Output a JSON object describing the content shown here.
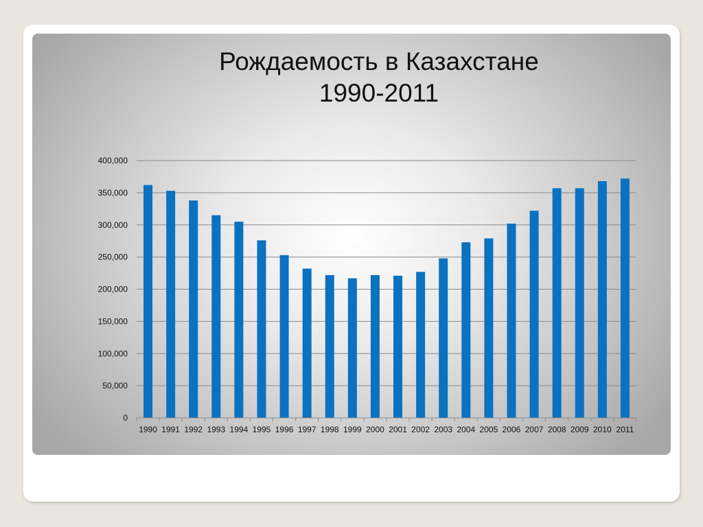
{
  "chart_data": {
    "type": "bar",
    "title_line1": "Рождаемость в Казахстане",
    "title_line2": "1990-2011",
    "categories": [
      "1990",
      "1991",
      "1992",
      "1993",
      "1994",
      "1995",
      "1996",
      "1997",
      "1998",
      "1999",
      "2000",
      "2001",
      "2002",
      "2003",
      "2004",
      "2005",
      "2006",
      "2007",
      "2008",
      "2009",
      "2010",
      "2011"
    ],
    "values": [
      362000,
      353000,
      338000,
      315000,
      305000,
      276000,
      253000,
      232000,
      222000,
      217000,
      222000,
      221000,
      227000,
      248000,
      273000,
      279000,
      302000,
      322000,
      357000,
      357000,
      368000,
      372000
    ],
    "ylim": [
      0,
      400000
    ],
    "yticks": [
      "0",
      "50,000",
      "100,000",
      "150,000",
      "200,000",
      "250,000",
      "300,000",
      "350,000",
      "400,000"
    ],
    "ytick_values": [
      0,
      50000,
      100000,
      150000,
      200000,
      250000,
      300000,
      350000,
      400000
    ],
    "grid": true,
    "legend": "none",
    "bar_color": "#0a72c0",
    "grid_color": "#8a8a8a"
  }
}
